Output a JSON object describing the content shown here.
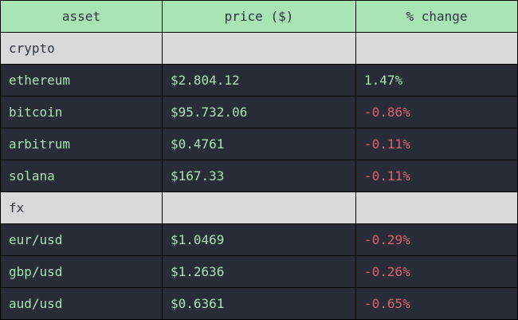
{
  "table": {
    "headers": [
      "asset",
      "price ($)",
      "% change"
    ],
    "colors": {
      "header_bg": "#a8e4b4",
      "section_bg": "#d9d9d9",
      "row_bg": "#272c36",
      "positive": "#a8e4b4",
      "negative": "#e0616f"
    },
    "sections": [
      {
        "name": "crypto",
        "rows": [
          {
            "asset": "ethereum",
            "price": "$2.804.12",
            "change": "1.47%",
            "direction": "up"
          },
          {
            "asset": "bitcoin",
            "price": "$95.732.06",
            "change": "-0.86%",
            "direction": "down"
          },
          {
            "asset": "arbitrum",
            "price": "$0.4761",
            "change": "-0.11%",
            "direction": "down"
          },
          {
            "asset": "solana",
            "price": "$167.33",
            "change": "-0.11%",
            "direction": "down"
          }
        ]
      },
      {
        "name": "fx",
        "rows": [
          {
            "asset": "eur/usd",
            "price": "$1.0469",
            "change": "-0.29%",
            "direction": "down"
          },
          {
            "asset": "gbp/usd",
            "price": "$1.2636",
            "change": "-0.26%",
            "direction": "down"
          },
          {
            "asset": "aud/usd",
            "price": "$0.6361",
            "change": "-0.65%",
            "direction": "down"
          }
        ]
      }
    ]
  }
}
